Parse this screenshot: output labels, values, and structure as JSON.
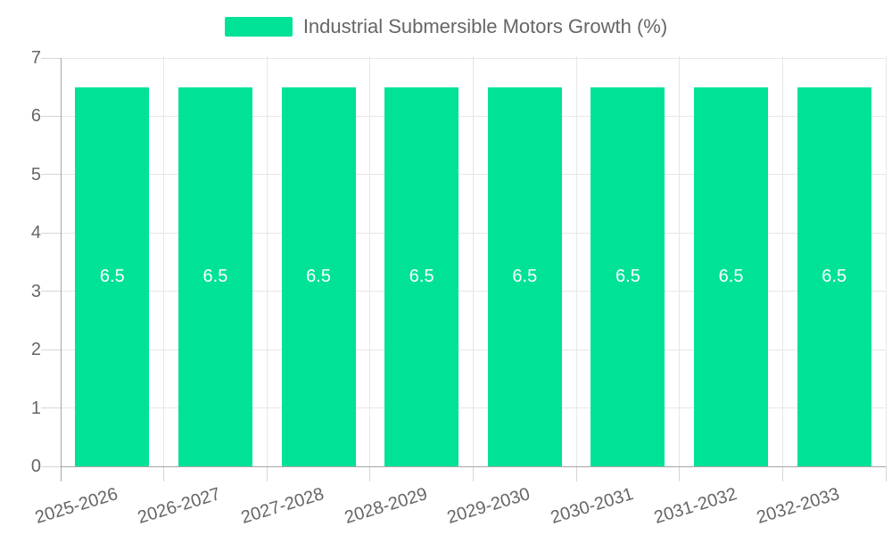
{
  "chart_data": {
    "type": "bar",
    "title": "Industrial Submersible Motors Growth (%)",
    "legend": {
      "position": "top",
      "label": "Industrial Submersible Motors Growth (%)"
    },
    "categories": [
      "2025-2026",
      "2026-2027",
      "2027-2028",
      "2028-2029",
      "2029-2030",
      "2030-2031",
      "2031-2032",
      "2032-2033"
    ],
    "series": [
      {
        "name": "Industrial Submersible Motors Growth (%)",
        "values": [
          6.5,
          6.5,
          6.5,
          6.5,
          6.5,
          6.5,
          6.5,
          6.5
        ]
      }
    ],
    "data_labels": [
      "6.5",
      "6.5",
      "6.5",
      "6.5",
      "6.5",
      "6.5",
      "6.5",
      "6.5"
    ],
    "ylim": [
      0,
      7
    ],
    "yticks": [
      0,
      1,
      2,
      3,
      4,
      5,
      6,
      7
    ],
    "grid": "on",
    "colors": {
      "bar": "#00E396",
      "data_label": "#ffffff",
      "axis_text": "#666666",
      "grid_line": "#e7e7e7",
      "tick_line": "#d6d6d6",
      "axis_line": "#a6a6a6"
    }
  }
}
